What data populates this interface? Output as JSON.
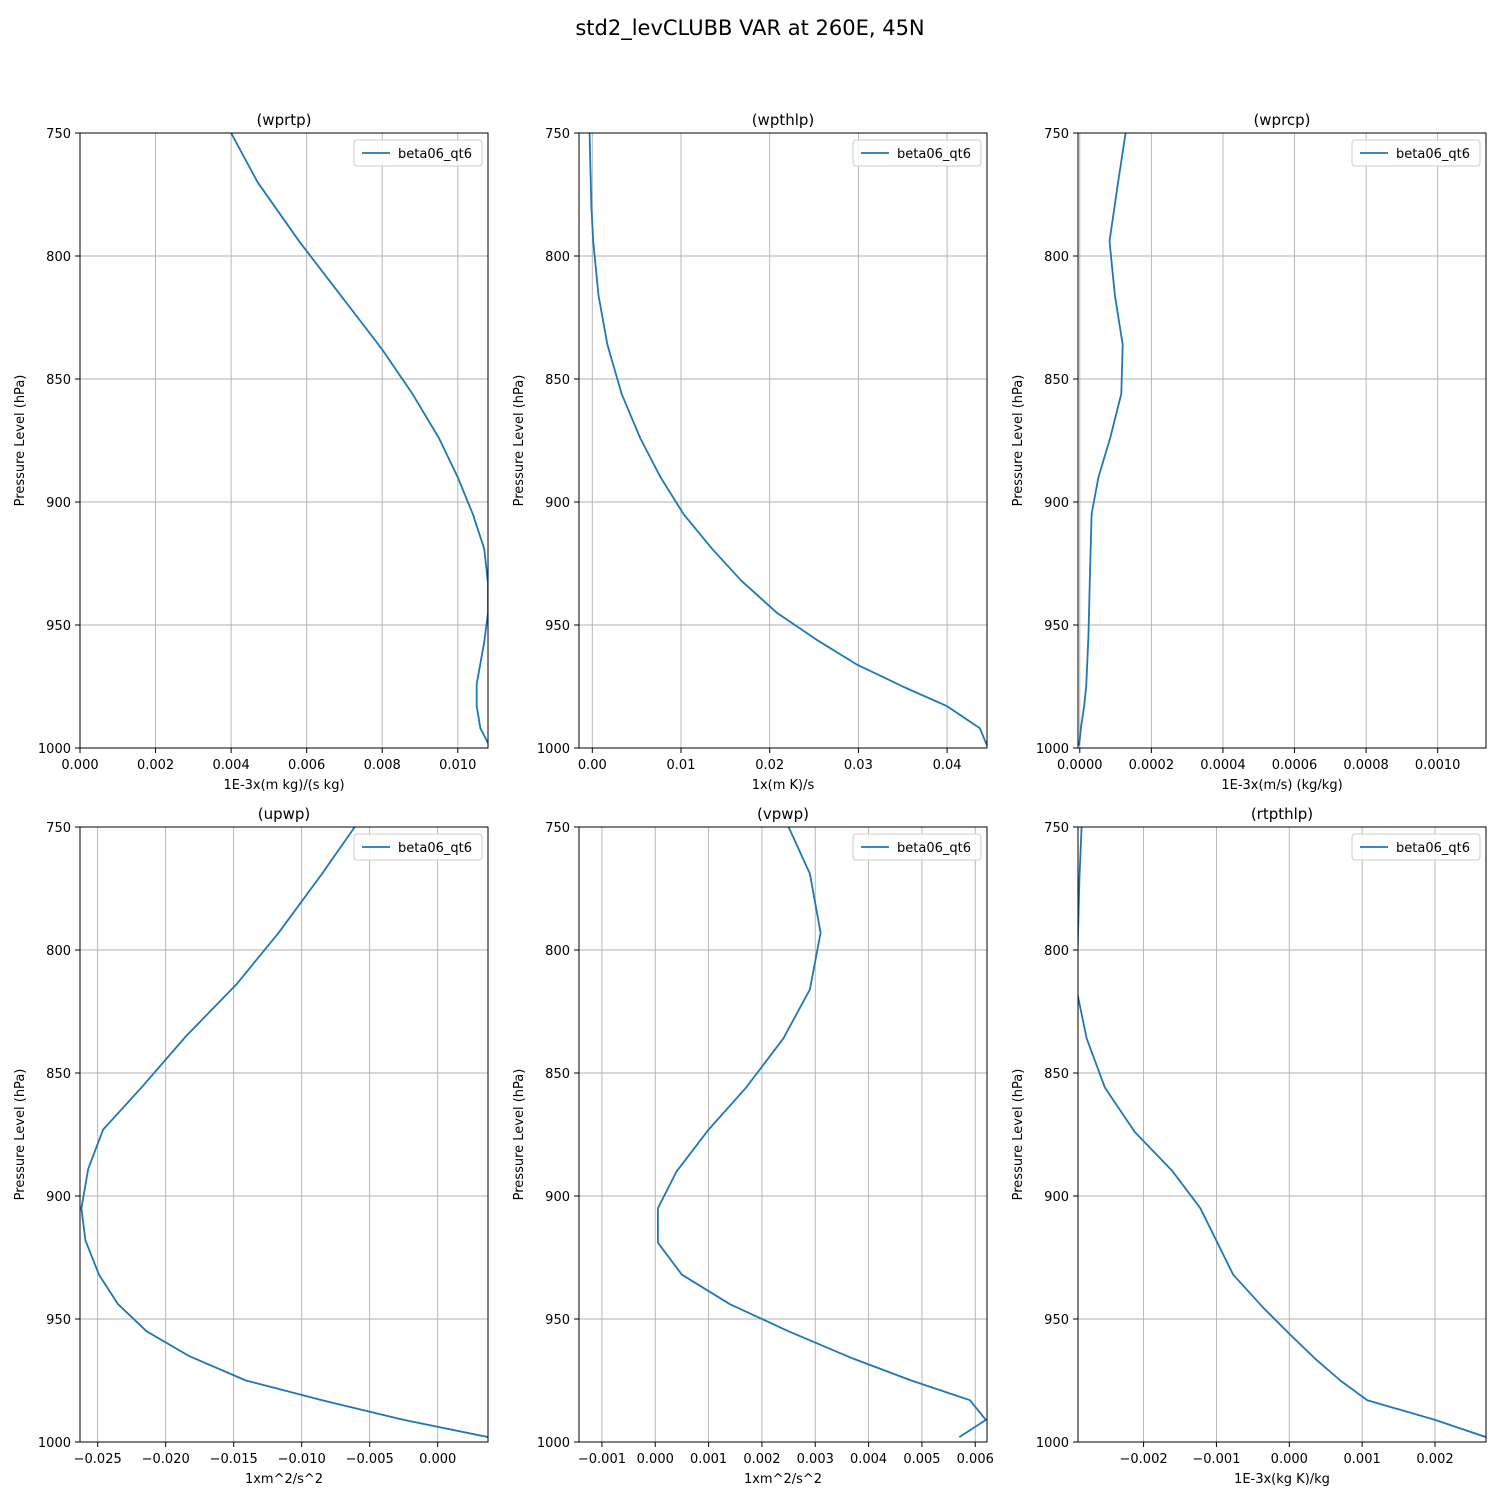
{
  "figure": {
    "title": "std2_levCLUBB VAR at 260E, 45N"
  },
  "colors": {
    "series": "#1f77b4",
    "grid": "#b0b0b0",
    "axis": "#000000"
  },
  "chart_data": [
    {
      "type": "line",
      "title": "(wprtp)",
      "xlabel": "1E-3x(m kg)/(s kg)",
      "ylabel": "Pressure Level (hPa)",
      "xlim": [
        0.0,
        0.0108
      ],
      "ylim": [
        1000,
        750
      ],
      "xticks": [
        0.0,
        0.002,
        0.004,
        0.006,
        0.008,
        0.01
      ],
      "xtick_labels": [
        "0.000",
        "0.002",
        "0.004",
        "0.006",
        "0.008",
        "0.010"
      ],
      "yticks": [
        750,
        800,
        850,
        900,
        950,
        1000
      ],
      "ytick_labels": [
        "750",
        "800",
        "850",
        "900",
        "950",
        "1000"
      ],
      "grid": true,
      "legend": "upper right",
      "series": [
        {
          "name": "beta06_qt6",
          "x": [
            0.004,
            0.0047,
            0.0058,
            0.0066,
            0.0074,
            0.008,
            0.0088,
            0.0095,
            0.01,
            0.0104,
            0.0107,
            0.0108,
            0.0108,
            0.0107,
            0.0105,
            0.0105,
            0.0106,
            0.0108
          ],
          "y": [
            750,
            770,
            794,
            810,
            826,
            838,
            856,
            874,
            890,
            905,
            919,
            933,
            945,
            957,
            974,
            983,
            992,
            998
          ]
        }
      ]
    },
    {
      "type": "line",
      "title": "(wpthlp)",
      "xlabel": "1x(m K)/s",
      "ylabel": "Pressure Level (hPa)",
      "xlim": [
        -0.0015,
        0.0445
      ],
      "ylim": [
        1000,
        750
      ],
      "xticks": [
        0.0,
        0.01,
        0.02,
        0.03,
        0.04
      ],
      "xtick_labels": [
        "0.00",
        "0.01",
        "0.02",
        "0.03",
        "0.04"
      ],
      "yticks": [
        750,
        800,
        850,
        900,
        950,
        1000
      ],
      "ytick_labels": [
        "750",
        "800",
        "850",
        "900",
        "950",
        "1000"
      ],
      "grid": true,
      "legend": "upper right",
      "series": [
        {
          "name": "beta06_qt6",
          "x": [
            -0.0003,
            -0.0002,
            -0.0001,
            0.0001,
            0.0007,
            0.0017,
            0.0033,
            0.0054,
            0.0077,
            0.0103,
            0.0135,
            0.0168,
            0.0208,
            0.0253,
            0.0298,
            0.035,
            0.04,
            0.0437,
            0.0445
          ],
          "y": [
            750,
            766,
            780,
            794,
            816,
            836,
            856,
            874,
            890,
            905,
            919,
            932,
            945,
            956,
            966,
            975,
            983,
            992,
            999
          ]
        }
      ]
    },
    {
      "type": "line",
      "title": "(wprcp)",
      "xlabel": "1E-3x(m/s) (kg/kg)",
      "ylabel": "Pressure Level (hPa)",
      "xlim": [
        -5e-06,
        0.001135
      ],
      "ylim": [
        1000,
        750
      ],
      "xticks": [
        0.0,
        0.0002,
        0.0004,
        0.0006,
        0.0008,
        0.001
      ],
      "xtick_labels": [
        "0.0000",
        "0.0002",
        "0.0004",
        "0.0006",
        "0.0008",
        "0.0010"
      ],
      "yticks": [
        750,
        800,
        850,
        900,
        950,
        1000
      ],
      "ytick_labels": [
        "750",
        "800",
        "850",
        "900",
        "950",
        "1000"
      ],
      "grid": true,
      "legend": "upper right",
      "series": [
        {
          "name": "beta06_qt6",
          "x": [
            0.000128,
            0.000107,
            8.3e-05,
            9.8e-05,
            0.00012,
            0.000116,
            8.5e-05,
            5.2e-05,
            3.3e-05,
            2.8e-05,
            2.4e-05,
            1.8e-05,
            1.2e-05,
            3e-06,
            -2e-06
          ],
          "y": [
            750,
            770,
            794,
            816,
            836,
            856,
            874,
            890,
            905,
            932,
            955,
            975,
            983,
            992,
            999
          ]
        }
      ]
    },
    {
      "type": "line",
      "title": "(upwp)",
      "xlabel": "1xm^2/s^2",
      "ylabel": "Pressure Level (hPa)",
      "xlim": [
        -0.0263,
        0.0037
      ],
      "ylim": [
        1000,
        750
      ],
      "xticks": [
        -0.025,
        -0.02,
        -0.015,
        -0.01,
        -0.005,
        0.0
      ],
      "xtick_labels": [
        "−0.025",
        "−0.020",
        "−0.015",
        "−0.010",
        "−0.005",
        "0.000"
      ],
      "yticks": [
        750,
        800,
        850,
        900,
        950,
        1000
      ],
      "ytick_labels": [
        "750",
        "800",
        "850",
        "900",
        "950",
        "1000"
      ],
      "grid": true,
      "legend": "upper right",
      "series": [
        {
          "name": "beta06_qt6",
          "x": [
            -0.0061,
            -0.0085,
            -0.0117,
            -0.0148,
            -0.0185,
            -0.0218,
            -0.0246,
            -0.0257,
            -0.0262,
            -0.0259,
            -0.0249,
            -0.0235,
            -0.0214,
            -0.0183,
            -0.0141,
            -0.0085,
            -0.0025,
            0.0037
          ],
          "y": [
            750,
            769,
            793,
            814,
            835,
            856,
            873,
            889,
            905,
            918,
            932,
            944,
            955,
            965,
            975,
            983,
            991,
            998
          ]
        }
      ]
    },
    {
      "type": "line",
      "title": "(vpwp)",
      "xlabel": "1xm^2/s^2",
      "ylabel": "Pressure Level (hPa)",
      "xlim": [
        -0.00143,
        0.00622
      ],
      "ylim": [
        1000,
        750
      ],
      "xticks": [
        -0.001,
        0.0,
        0.001,
        0.002,
        0.003,
        0.004,
        0.005,
        0.006
      ],
      "xtick_labels": [
        "−0.001",
        "0.000",
        "0.001",
        "0.002",
        "0.003",
        "0.004",
        "0.005",
        "0.006"
      ],
      "yticks": [
        750,
        800,
        850,
        900,
        950,
        1000
      ],
      "ytick_labels": [
        "750",
        "800",
        "850",
        "900",
        "950",
        "1000"
      ],
      "grid": true,
      "legend": "upper right",
      "series": [
        {
          "name": "beta06_qt6",
          "x": [
            0.0025,
            0.0029,
            0.0031,
            0.0029,
            0.0024,
            0.0017,
            0.001,
            0.0004,
            5e-05,
            5e-05,
            0.0005,
            0.0014,
            0.0025,
            0.0037,
            0.0048,
            0.0059,
            0.0062,
            0.0057
          ],
          "y": [
            750,
            769,
            793,
            816,
            836,
            856,
            873,
            890,
            905,
            919,
            932,
            944,
            955,
            966,
            975,
            983,
            991,
            998
          ]
        }
      ]
    },
    {
      "type": "line",
      "title": "(rtpthlp)",
      "xlabel": "1E-3x(kg K)/kg",
      "ylabel": "Pressure Level (hPa)",
      "xlim": [
        -0.0029,
        0.0027
      ],
      "ylim": [
        1000,
        750
      ],
      "xticks": [
        -0.002,
        -0.001,
        0.0,
        0.001,
        0.002
      ],
      "xtick_labels": [
        "−0.002",
        "−0.001",
        "0.000",
        "0.001",
        "0.002"
      ],
      "yticks": [
        750,
        800,
        850,
        900,
        950,
        1000
      ],
      "ytick_labels": [
        "750",
        "800",
        "850",
        "900",
        "950",
        "1000"
      ],
      "grid": true,
      "legend": "upper right",
      "series": [
        {
          "name": "beta06_qt6",
          "x": [
            -0.00285,
            -0.00288,
            -0.0029,
            -0.00292,
            -0.00278,
            -0.00253,
            -0.00212,
            -0.0016,
            -0.00122,
            -0.00077,
            -0.00037,
            0.0,
            0.00035,
            0.0007,
            0.00107,
            0.002,
            0.0027
          ],
          "y": [
            750,
            770,
            794,
            816,
            836,
            856,
            874,
            890,
            905,
            932,
            945,
            956,
            966,
            975,
            983,
            991,
            998
          ]
        }
      ]
    }
  ]
}
